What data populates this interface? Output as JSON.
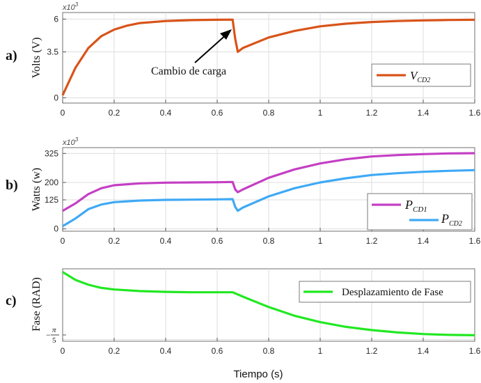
{
  "xlabel": "Tiempo (s)",
  "x_ticks": [
    "0",
    "0.2",
    "0.4",
    "0.6",
    "0.8",
    "1",
    "1.2",
    "1.4",
    "1.6"
  ],
  "panels": [
    {
      "label": "a)",
      "ylabel": "Volts (V)",
      "multiplier_base": "x10",
      "multiplier_exp": "3",
      "y_ticks": [
        "6",
        "3.5",
        "0"
      ],
      "legend": [
        {
          "sym": "V",
          "sub": "CD2",
          "color": "#d95319"
        }
      ],
      "annotation": "Cambio de carga"
    },
    {
      "label": "b)",
      "ylabel": "Watts (w)",
      "multiplier_base": "x10",
      "multiplier_exp": "3",
      "y_ticks": [
        "325",
        "200",
        "125",
        "0"
      ],
      "legend": [
        {
          "sym": "P",
          "sub": "CD1",
          "color": "#c43fc4"
        },
        {
          "sym": "P",
          "sub": "CD2",
          "color": "#3fa9f5"
        }
      ]
    },
    {
      "label": "c)",
      "ylabel": "Fase (RAD)",
      "y_ticks_frac": {
        "sign": "−",
        "num": "π",
        "den": "5"
      },
      "legend": [
        {
          "text": "Desplazamiento de Fase",
          "color": "#22e822"
        }
      ]
    }
  ],
  "chart_data": [
    {
      "type": "line",
      "xlabel": "Tiempo (s)",
      "ylabel": "Volts (V)",
      "xlim": [
        0,
        1.6
      ],
      "ylim": [
        -0.4,
        6.5
      ],
      "y_scale_note": "x10^3",
      "x": [
        0,
        0.05,
        0.1,
        0.15,
        0.2,
        0.25,
        0.3,
        0.4,
        0.5,
        0.6,
        0.66,
        0.67,
        0.68,
        0.7,
        0.8,
        0.9,
        1.0,
        1.1,
        1.2,
        1.3,
        1.4,
        1.5,
        1.6
      ],
      "series": [
        {
          "name": "V_CD2",
          "color": "#d95319",
          "values": [
            0.2,
            2.3,
            3.8,
            4.7,
            5.2,
            5.5,
            5.7,
            5.85,
            5.92,
            5.95,
            5.96,
            4.5,
            3.5,
            3.8,
            4.6,
            5.1,
            5.45,
            5.65,
            5.78,
            5.85,
            5.9,
            5.93,
            5.95
          ]
        }
      ],
      "annotations": [
        "Cambio de carga"
      ]
    },
    {
      "type": "line",
      "xlabel": "Tiempo (s)",
      "ylabel": "Watts (w)",
      "xlim": [
        0,
        1.6
      ],
      "ylim": [
        -10,
        350
      ],
      "y_scale_note": "x10^3",
      "x": [
        0,
        0.05,
        0.1,
        0.15,
        0.2,
        0.3,
        0.4,
        0.5,
        0.6,
        0.66,
        0.67,
        0.68,
        0.7,
        0.8,
        0.9,
        1.0,
        1.1,
        1.2,
        1.3,
        1.4,
        1.5,
        1.6
      ],
      "series": [
        {
          "name": "P_CD1",
          "color": "#c43fc4",
          "values": [
            78,
            110,
            150,
            175,
            188,
            196,
            199,
            200,
            201,
            202,
            170,
            158,
            170,
            220,
            256,
            282,
            300,
            312,
            318,
            322,
            325,
            326
          ]
        },
        {
          "name": "P_CD2",
          "color": "#3fa9f5",
          "values": [
            12,
            45,
            85,
            105,
            115,
            122,
            125,
            126,
            127,
            128,
            95,
            78,
            92,
            140,
            175,
            200,
            218,
            232,
            240,
            246,
            250,
            253
          ]
        }
      ]
    },
    {
      "type": "line",
      "xlabel": "Tiempo (s)",
      "ylabel": "Fase (RAD)",
      "xlim": [
        0,
        1.6
      ],
      "ylim": [
        -0.65,
        0.26
      ],
      "x": [
        0,
        0.05,
        0.1,
        0.15,
        0.2,
        0.3,
        0.4,
        0.5,
        0.6,
        0.66,
        0.7,
        0.8,
        0.9,
        1.0,
        1.1,
        1.2,
        1.3,
        1.4,
        1.5,
        1.6
      ],
      "series": [
        {
          "name": "Desplazamiento de Fase",
          "color": "#22e822",
          "values": [
            0.22,
            0.12,
            0.06,
            0.02,
            0.0,
            -0.02,
            -0.03,
            -0.035,
            -0.035,
            -0.035,
            -0.09,
            -0.22,
            -0.33,
            -0.41,
            -0.47,
            -0.51,
            -0.54,
            -0.56,
            -0.57,
            -0.575
          ]
        }
      ]
    }
  ]
}
